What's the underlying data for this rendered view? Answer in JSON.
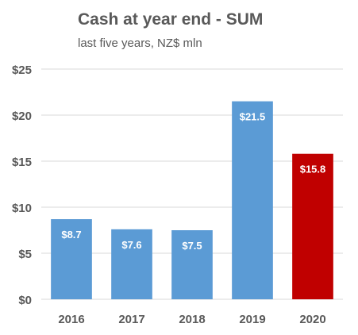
{
  "chart_data": {
    "type": "bar",
    "title": "Cash at year end - SUM",
    "subtitle": "last five years, NZ$ mln",
    "categories": [
      "2016",
      "2017",
      "2018",
      "2019",
      "2020"
    ],
    "values": [
      8.7,
      7.6,
      7.5,
      21.5,
      15.8
    ],
    "data_labels": [
      "$8.7",
      "$7.6",
      "$7.5",
      "$21.5",
      "$15.8"
    ],
    "bar_colors": [
      "#5b9bd5",
      "#5b9bd5",
      "#5b9bd5",
      "#5b9bd5",
      "#c00000"
    ],
    "ylim": [
      0,
      25
    ],
    "yticks": [
      0,
      5,
      10,
      15,
      20,
      25
    ],
    "ytick_labels": [
      "$0",
      "$5",
      "$10",
      "$15",
      "$20",
      "$25"
    ],
    "xlabel": "",
    "ylabel": "",
    "grid": true,
    "legend": "none"
  },
  "colors": {
    "grid": "#d9d9d9",
    "text": "#595959",
    "label_text": "#ffffff"
  }
}
